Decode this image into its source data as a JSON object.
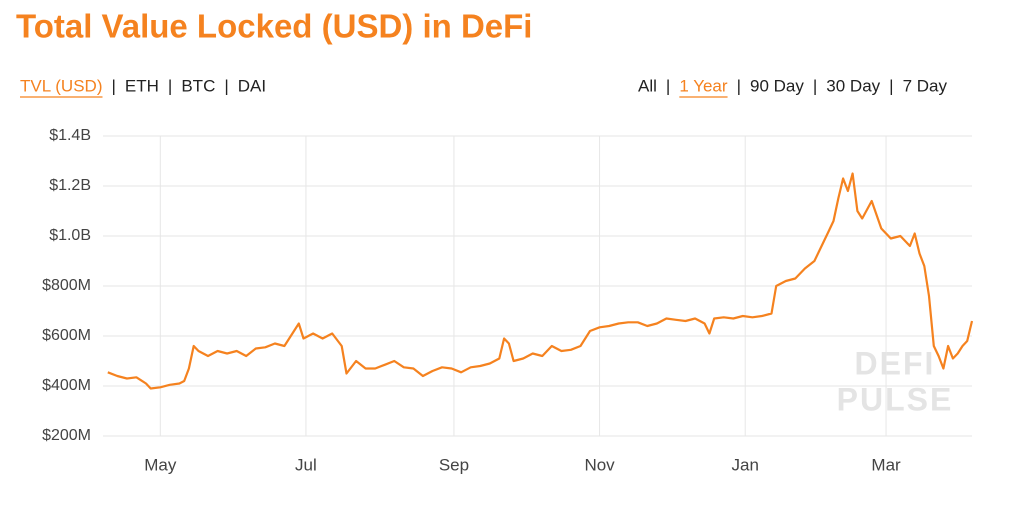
{
  "controls": {
    "separator": "|",
    "left": {
      "items": [
        "TVL (USD)",
        "ETH",
        "BTC",
        "DAI"
      ],
      "active": 0
    },
    "right": {
      "items": [
        "All",
        "1 Year",
        "90 Day",
        "30 Day",
        "7 Day"
      ],
      "active": 1
    }
  },
  "watermark": [
    "DEFI",
    "PULSE"
  ],
  "chart_data": {
    "type": "line",
    "title": "Total Value Locked (USD) in DeFi",
    "color": "#f5821f",
    "grid": true,
    "xlim": [
      0,
      364
    ],
    "xticks": [
      {
        "value": 24,
        "label": "May"
      },
      {
        "value": 85,
        "label": "Jul"
      },
      {
        "value": 147,
        "label": "Sep"
      },
      {
        "value": 208,
        "label": "Nov"
      },
      {
        "value": 269,
        "label": "Jan"
      },
      {
        "value": 328,
        "label": "Mar"
      }
    ],
    "ylim": [
      200000000,
      1400000000
    ],
    "yticks": [
      {
        "value": 200000000,
        "label": "$200M"
      },
      {
        "value": 400000000,
        "label": "$400M"
      },
      {
        "value": 600000000,
        "label": "$600M"
      },
      {
        "value": 800000000,
        "label": "$800M"
      },
      {
        "value": 1000000000,
        "label": "$1.0B"
      },
      {
        "value": 1200000000,
        "label": "$1.2B"
      },
      {
        "value": 1400000000,
        "label": "$1.4B"
      }
    ],
    "x": [
      2,
      6,
      10,
      14,
      18,
      20,
      24,
      28,
      32,
      34,
      36,
      38,
      40,
      44,
      48,
      52,
      56,
      60,
      64,
      68,
      72,
      76,
      80,
      82,
      84,
      88,
      92,
      96,
      100,
      102,
      106,
      110,
      114,
      118,
      122,
      126,
      130,
      134,
      138,
      142,
      146,
      150,
      154,
      158,
      162,
      166,
      168,
      170,
      172,
      176,
      180,
      184,
      188,
      192,
      196,
      200,
      204,
      208,
      212,
      216,
      220,
      224,
      228,
      232,
      236,
      240,
      244,
      248,
      252,
      254,
      256,
      260,
      264,
      268,
      272,
      276,
      280,
      282,
      286,
      290,
      294,
      298,
      302,
      304,
      306,
      308,
      310,
      312,
      314,
      316,
      318,
      322,
      326,
      330,
      334,
      338,
      340,
      342,
      344,
      346,
      348,
      350,
      352,
      354,
      356,
      358,
      360,
      362,
      364
    ],
    "values": [
      455000000,
      440000000,
      430000000,
      435000000,
      410000000,
      390000000,
      395000000,
      405000000,
      410000000,
      420000000,
      470000000,
      560000000,
      540000000,
      520000000,
      540000000,
      530000000,
      540000000,
      520000000,
      550000000,
      555000000,
      570000000,
      560000000,
      620000000,
      650000000,
      590000000,
      610000000,
      590000000,
      610000000,
      560000000,
      450000000,
      500000000,
      470000000,
      470000000,
      485000000,
      500000000,
      475000000,
      470000000,
      440000000,
      460000000,
      475000000,
      470000000,
      455000000,
      475000000,
      480000000,
      490000000,
      510000000,
      590000000,
      570000000,
      500000000,
      510000000,
      530000000,
      520000000,
      560000000,
      540000000,
      545000000,
      560000000,
      620000000,
      635000000,
      640000000,
      650000000,
      655000000,
      655000000,
      640000000,
      650000000,
      670000000,
      665000000,
      660000000,
      670000000,
      650000000,
      610000000,
      670000000,
      675000000,
      670000000,
      680000000,
      675000000,
      680000000,
      690000000,
      800000000,
      820000000,
      830000000,
      870000000,
      900000000,
      980000000,
      1020000000,
      1060000000,
      1150000000,
      1230000000,
      1180000000,
      1250000000,
      1100000000,
      1070000000,
      1140000000,
      1030000000,
      990000000,
      1000000000,
      960000000,
      1010000000,
      930000000,
      880000000,
      760000000,
      560000000,
      520000000,
      470000000,
      560000000,
      510000000,
      530000000,
      560000000,
      580000000,
      660000000
    ]
  }
}
